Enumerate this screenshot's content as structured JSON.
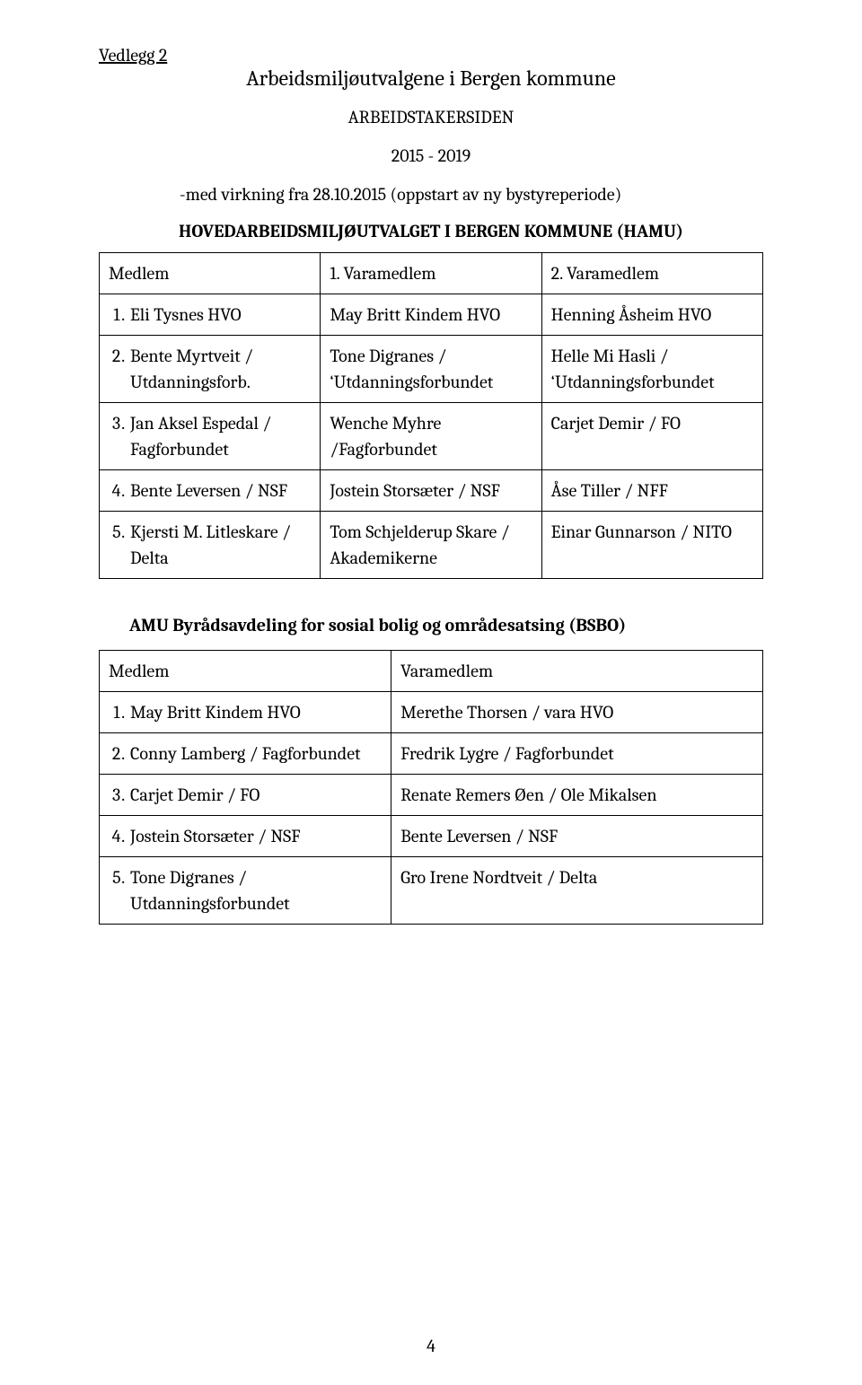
{
  "attachment_label": "Vedlegg 2",
  "main_title": "Arbeidsmiljøutvalgene i Bergen kommune",
  "side_heading": "ARBEIDSTAKERSIDEN",
  "period": "2015 - 2019",
  "effective": "-med virkning fra 28.10.2015 (oppstart av ny bystyreperiode)",
  "hamu": {
    "heading": "HOVEDARBEIDSMILJØUTVALGET I BERGEN KOMMUNE (HAMU)",
    "headers": {
      "c1": "Medlem",
      "c2": "1. Varamedlem",
      "c3": "2. Varamedlem"
    },
    "rows": [
      {
        "num": "1.",
        "c1": "Eli Tysnes HVO",
        "c2": "May Britt Kindem HVO",
        "c3": "Henning Åsheim HVO"
      },
      {
        "num": "2.",
        "c1": "Bente Myrtveit / Utdanningsforb.",
        "c2": "Tone Digranes / ‘Utdanningsforbundet",
        "c3": "Helle Mi Hasli / ‘Utdanningsforbundet"
      },
      {
        "num": "3.",
        "c1": "Jan Aksel Espedal / Fagforbundet",
        "c2": "Wenche Myhre /Fagforbundet",
        "c3": "Carjet Demir / FO"
      },
      {
        "num": "4.",
        "c1": "Bente Leversen / NSF",
        "c2": "Jostein Storsæter / NSF",
        "c3": "Åse Tiller / NFF"
      },
      {
        "num": "5.",
        "c1": "Kjersti M. Litleskare / Delta",
        "c2": "Tom Schjelderup Skare / Akademikerne",
        "c3": "Einar Gunnarson / NITO"
      }
    ]
  },
  "bsbo": {
    "heading": "AMU Byrådsavdeling for sosial bolig og områdesatsing (BSBO)",
    "headers": {
      "c1": "Medlem",
      "c2": "Varamedlem"
    },
    "rows": [
      {
        "num": "1.",
        "c1": "May Britt Kindem HVO",
        "c2": "Merethe Thorsen / vara HVO"
      },
      {
        "num": "2.",
        "c1": "Conny Lamberg / Fagforbundet",
        "c2": "Fredrik Lygre / Fagforbundet"
      },
      {
        "num": "3.",
        "c1": "Carjet Demir / FO",
        "c2": "Renate Remers Øen / Ole Mikalsen"
      },
      {
        "num": "4.",
        "c1": "Jostein Storsæter / NSF",
        "c2": "Bente Leversen / NSF"
      },
      {
        "num": "5.",
        "c1": "Tone Digranes / Utdanningsforbundet",
        "c2": "Gro Irene Nordtveit / Delta"
      }
    ]
  },
  "page_number": "4"
}
